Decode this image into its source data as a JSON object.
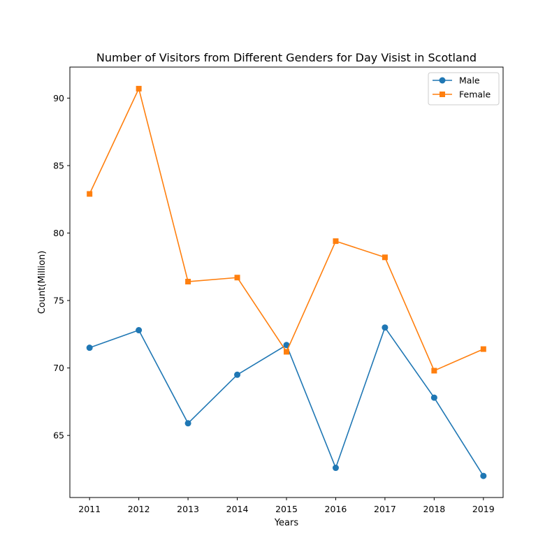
{
  "chart_data": {
    "type": "line",
    "title": "Number of Visitors from Different Genders for Day Visist in Scotland",
    "xlabel": "Years",
    "ylabel": "Count(Million)",
    "x": [
      2011,
      2012,
      2013,
      2014,
      2015,
      2016,
      2017,
      2018,
      2019
    ],
    "x_tick_labels": [
      "2011",
      "2012",
      "2013",
      "2014",
      "2015",
      "2016",
      "2017",
      "2018",
      "2019"
    ],
    "xlim": [
      2010.6,
      2019.4
    ],
    "ylim": [
      60.4,
      92.3
    ],
    "y_ticks": [
      65,
      70,
      75,
      80,
      85,
      90
    ],
    "y_tick_labels": [
      "65",
      "70",
      "75",
      "80",
      "85",
      "90"
    ],
    "grid": false,
    "legend_position": "top-right",
    "series": [
      {
        "name": "Male",
        "color": "#1f77b4",
        "marker": "circle",
        "values": [
          71.5,
          72.8,
          65.9,
          69.5,
          71.7,
          62.6,
          73.0,
          67.8,
          62.0
        ]
      },
      {
        "name": "Female",
        "color": "#ff7f0e",
        "marker": "square",
        "values": [
          82.9,
          90.7,
          76.4,
          76.7,
          71.2,
          79.4,
          78.2,
          69.8,
          71.4
        ]
      }
    ]
  }
}
